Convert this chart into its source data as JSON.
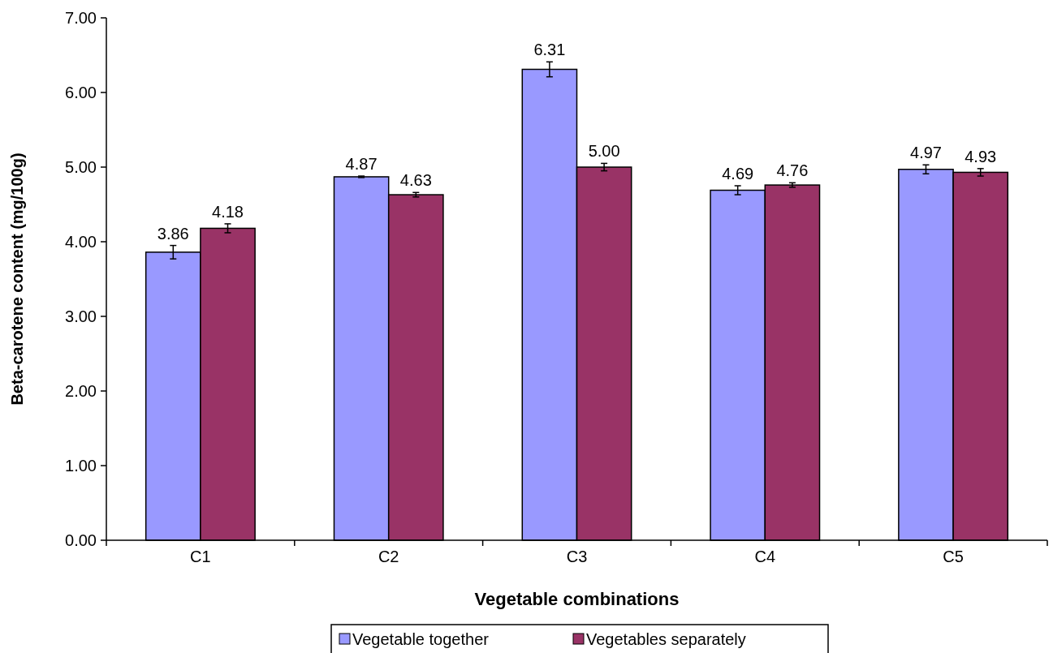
{
  "chart_data": {
    "type": "bar",
    "xlabel": "Vegetable  combinations",
    "ylabel": "Beta-carotene  content  (mg/100g)",
    "categories": [
      "C1",
      "C2",
      "C3",
      "C4",
      "C5"
    ],
    "series": [
      {
        "name": "Vegetable together",
        "color": "#9999ff",
        "values": [
          3.86,
          4.87,
          6.31,
          4.69,
          4.97
        ],
        "value_labels": [
          "3.86",
          "4.87",
          "6.31",
          "4.69",
          "4.97"
        ],
        "errors": [
          0.09,
          0.01,
          0.1,
          0.06,
          0.06
        ]
      },
      {
        "name": "Vegetables separately",
        "color": "#993366",
        "values": [
          4.18,
          4.63,
          5.0,
          4.76,
          4.93
        ],
        "value_labels": [
          "4.18",
          "4.63",
          "5.00",
          "4.76",
          "4.93"
        ],
        "errors": [
          0.06,
          0.03,
          0.05,
          0.03,
          0.05
        ]
      }
    ],
    "ylim": [
      0,
      7
    ],
    "yticks": [
      {
        "value": 0,
        "label": "0.00"
      },
      {
        "value": 1,
        "label": "1.00"
      },
      {
        "value": 2,
        "label": "2.00"
      },
      {
        "value": 3,
        "label": "3.00"
      },
      {
        "value": 4,
        "label": "4.00"
      },
      {
        "value": 5,
        "label": "5.00"
      },
      {
        "value": 6,
        "label": "6.00"
      },
      {
        "value": 7,
        "label": "7.00"
      }
    ],
    "legend": "bottom",
    "grid": false
  }
}
